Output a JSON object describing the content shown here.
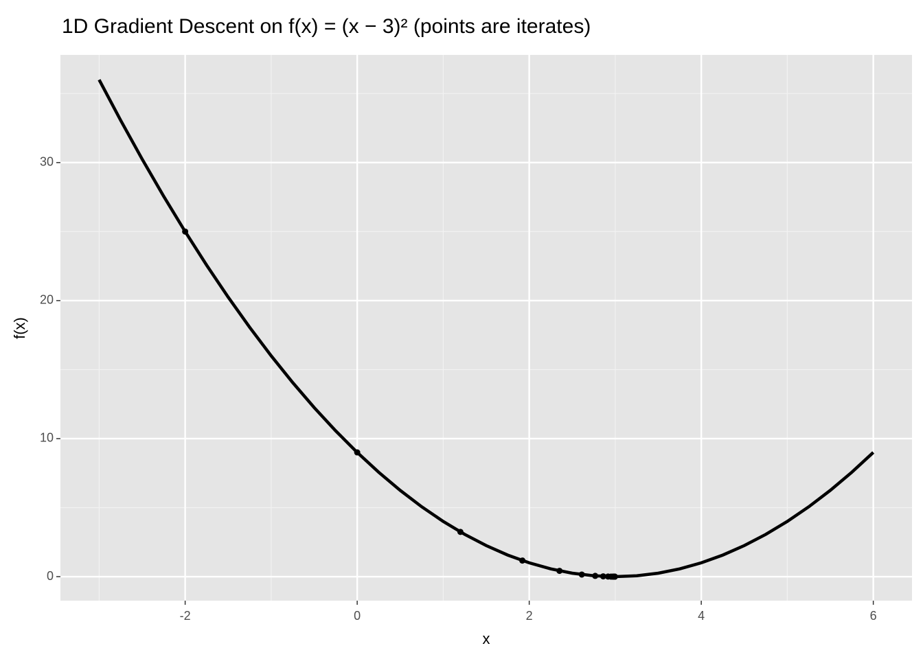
{
  "chart_data": {
    "type": "line",
    "title": "1D Gradient Descent on f(x) = (x − 3)² (points are iterates)",
    "x_label": "x",
    "y_label": "f(x)",
    "xlim": [
      -3.45,
      6.45
    ],
    "ylim": [
      -1.74,
      37.8
    ],
    "xticks": [
      -2,
      0,
      2,
      4,
      6
    ],
    "yticks": [
      0,
      10,
      20,
      30
    ],
    "grid": true,
    "series": [
      {
        "kind": "line",
        "color": "#000000",
        "x": [
          -3,
          -2.75,
          -2.5,
          -2.25,
          -2,
          -1.75,
          -1.5,
          -1.25,
          -1,
          -0.75,
          -0.5,
          -0.25,
          0,
          0.25,
          0.5,
          0.75,
          1,
          1.25,
          1.5,
          1.75,
          2,
          2.25,
          2.5,
          2.75,
          3,
          3.25,
          3.5,
          3.75,
          4,
          4.25,
          4.5,
          4.75,
          5,
          5.25,
          5.5,
          5.75,
          6
        ],
        "values": [
          36,
          33.0625,
          30.25,
          27.5625,
          25,
          22.5625,
          20.25,
          18.0625,
          16,
          14.0625,
          12.25,
          10.5625,
          9,
          7.5625,
          6.25,
          5.0625,
          4,
          3.0625,
          2.25,
          1.5625,
          1,
          0.5625,
          0.25,
          0.0625,
          0,
          0.0625,
          0.25,
          0.5625,
          1,
          1.5625,
          2.25,
          3.0625,
          4,
          5.0625,
          6.25,
          7.5625,
          9
        ]
      },
      {
        "kind": "points",
        "color": "#000000",
        "x": [
          -2,
          0,
          1.2,
          1.92,
          2.352,
          2.611,
          2.767,
          2.86,
          2.916,
          2.95,
          2.97,
          2.982,
          2.989,
          2.994,
          2.996
        ],
        "values": [
          25,
          9,
          3.24,
          1.166,
          0.42,
          0.151,
          0.054,
          0.02,
          0.007,
          0.003,
          0.001,
          0,
          0,
          0,
          0
        ]
      }
    ]
  }
}
